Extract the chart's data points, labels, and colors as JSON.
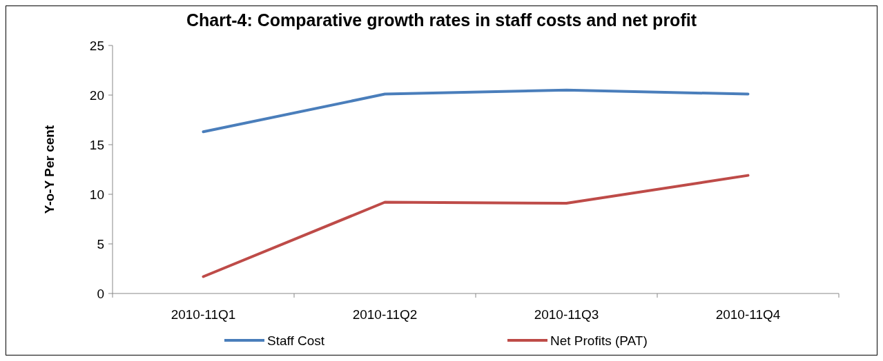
{
  "chart_data": {
    "type": "line",
    "title": "Chart-4: Comparative growth rates in staff costs and net profit",
    "ylabel": "Y-o-Y Per cent",
    "categories": [
      "2010-11Q1",
      "2010-11Q2",
      "2010-11Q3",
      "2010-11Q4"
    ],
    "series": [
      {
        "name": "Staff Cost",
        "color": "#4a7ebb",
        "values": [
          16.3,
          20.1,
          20.5,
          20.1
        ]
      },
      {
        "name": "Net Profits (PAT)",
        "color": "#be4b48",
        "values": [
          1.7,
          9.2,
          9.1,
          11.9
        ]
      }
    ],
    "ylim": [
      0,
      25
    ],
    "yticks": [
      0,
      5,
      10,
      15,
      20,
      25
    ],
    "grid": false,
    "legend": "bottom",
    "marker": "none",
    "line_style": "solid"
  }
}
